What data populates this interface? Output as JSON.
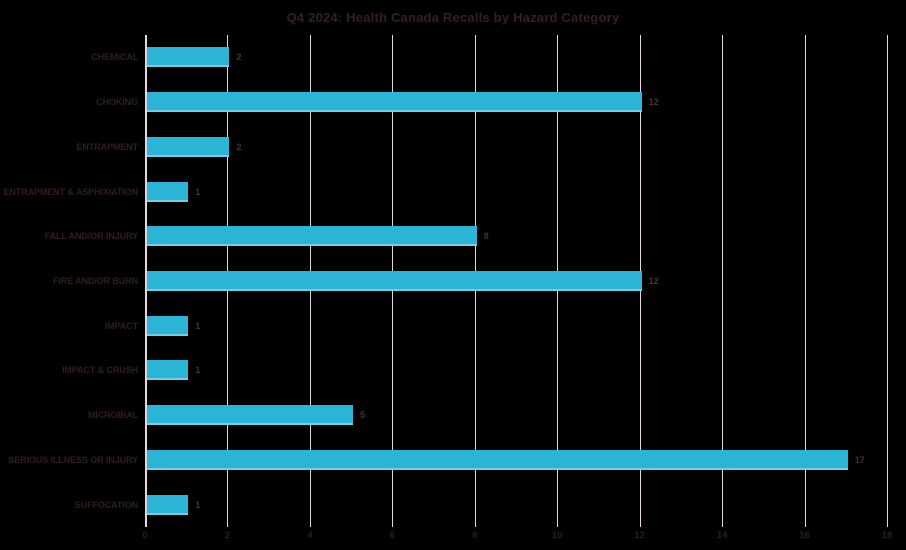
{
  "colors": {
    "background": "#000000",
    "bar": "#2ab4d6",
    "bar_bottom_highlight": "rgba(255,255,255,0.35)",
    "gridline": "#e6d3dd",
    "axis_line": "#e6d3dd",
    "title_text": "#351e2b",
    "category_text": "#301c27",
    "value_text": "#4f2d3f",
    "tick_text": "#2d1b26"
  },
  "chart_data": {
    "type": "bar",
    "orientation": "horizontal",
    "title": "Q4 2024: Health Canada Recalls by Hazard Category",
    "categories": [
      "CHEMICAL",
      "CHOKING",
      "ENTRAPMENT",
      "ENTRAPMENT & ASPHIXIATION",
      "FALL AND/OR INJURY",
      "FIRE AND/OR BURN",
      "IMPACT",
      "IMPACT & CRUSH",
      "MICROBIAL",
      "SERIOUS ILLNESS OR INJURY",
      "SUFFOCATION"
    ],
    "values": [
      2,
      12,
      2,
      1,
      8,
      12,
      1,
      1,
      5,
      17,
      1
    ],
    "data_labels": [
      "2",
      "12",
      "2",
      "1",
      "8",
      "12",
      "1",
      "1",
      "5",
      "17",
      "1"
    ],
    "xlabel": "",
    "ylabel": "",
    "xlim": [
      0,
      18
    ],
    "xticks": [
      "0",
      "2",
      "4",
      "6",
      "8",
      "10",
      "12",
      "14",
      "16",
      "18"
    ],
    "grid": "vertical",
    "legend": "none"
  }
}
